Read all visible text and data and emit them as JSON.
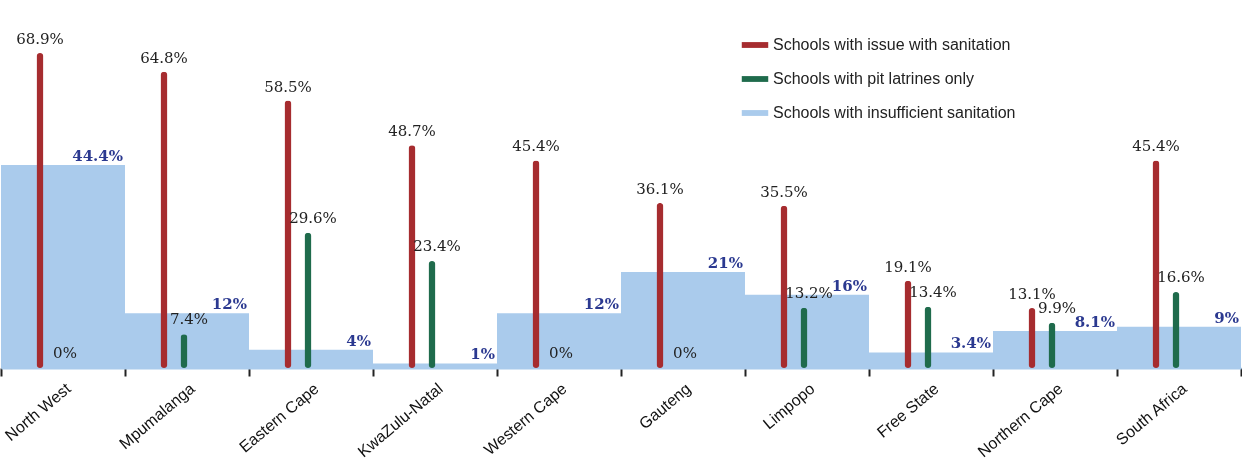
{
  "chart_data": {
    "type": "bar",
    "categories": [
      "North West",
      "Mpumalanga",
      "Eastern Cape",
      "KwaZulu-Natal",
      "Western Cape",
      "Gauteng",
      "Limpopo",
      "Free State",
      "Northern Cape",
      "South Africa"
    ],
    "series": [
      {
        "name": "Schools with issue with sanitation",
        "color": "#a62c2f",
        "values": [
          68.9,
          64.8,
          58.5,
          48.7,
          45.4,
          36.1,
          35.5,
          19.1,
          13.1,
          45.4
        ],
        "value_labels": [
          "68.9%",
          "64.8%",
          "58.5%",
          "48.7%",
          "45.4%",
          "36.1%",
          "35.5%",
          "19.1%",
          "13.1%",
          "45.4%"
        ]
      },
      {
        "name": "Schools with pit latrines only",
        "color": "#1f6b4c",
        "values": [
          0,
          7.4,
          29.6,
          23.4,
          0,
          0,
          13.2,
          13.4,
          9.9,
          16.6
        ],
        "value_labels": [
          "0%",
          "7.4%",
          "29.6%",
          "23.4%",
          "0%",
          "0%",
          "13.2%",
          "13.4%",
          "9.9%",
          "16.6%"
        ]
      },
      {
        "name": "Schools with insufficient sanitation",
        "color": "#aacbec",
        "values": [
          44.4,
          12,
          4,
          1,
          12,
          21,
          16,
          3.4,
          8.1,
          9
        ],
        "value_labels": [
          "44.4%",
          "12%",
          "4%",
          "1%",
          "12%",
          "21%",
          "16%",
          "3.4%",
          "8.1%",
          "9%"
        ]
      }
    ],
    "legend": "top right",
    "grid": false,
    "tick_labels": "x"
  }
}
